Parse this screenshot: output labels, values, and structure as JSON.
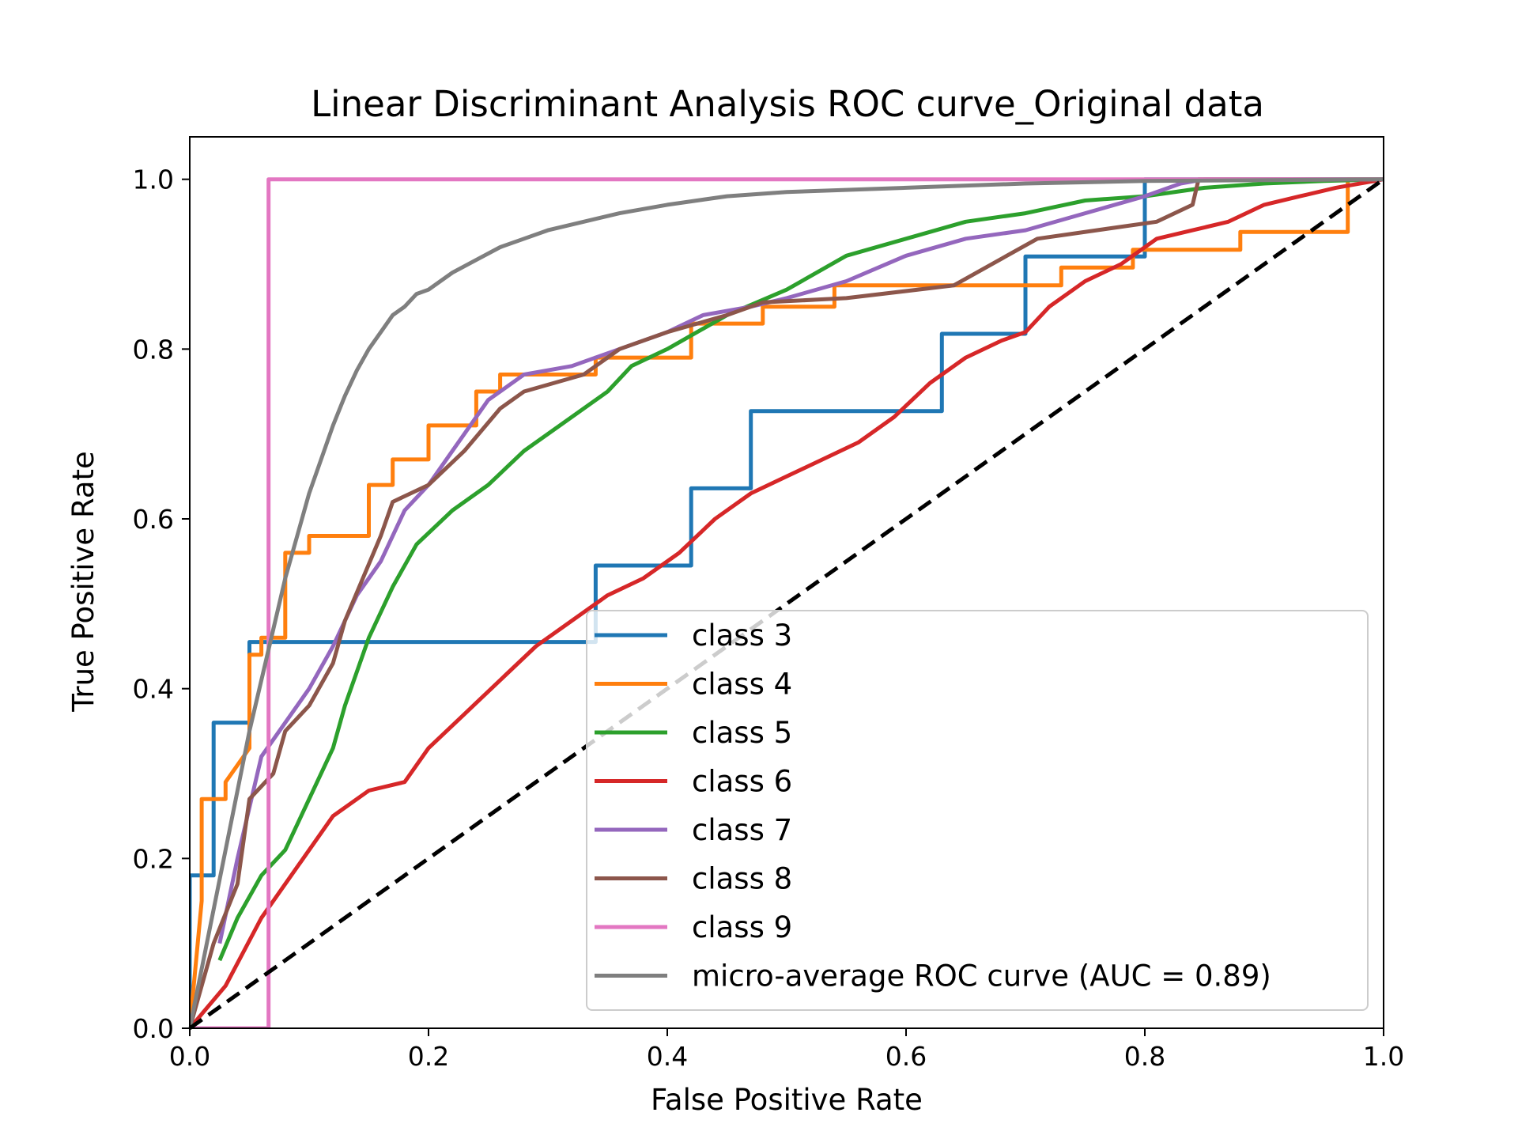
{
  "chart_data": {
    "type": "line",
    "title": "Linear Discriminant Analysis ROC curve_Original data",
    "xlabel": "False Positive Rate",
    "ylabel": "True Positive Rate",
    "xlim": [
      0.0,
      1.0
    ],
    "ylim": [
      0.0,
      1.05
    ],
    "xticks": [
      "0.0",
      "0.2",
      "0.4",
      "0.6",
      "0.8",
      "1.0"
    ],
    "yticks": [
      "0.0",
      "0.2",
      "0.4",
      "0.6",
      "0.8",
      "1.0"
    ],
    "grid": false,
    "legend_position": "lower right",
    "chance_line": {
      "x": [
        0,
        1
      ],
      "y": [
        0,
        1
      ],
      "color": "#000000",
      "style": "dashed"
    },
    "series": [
      {
        "name": "class 3",
        "color": "#1f77b4",
        "step": true,
        "x": [
          0,
          0,
          0.02,
          0.02,
          0.05,
          0.05,
          0.34,
          0.34,
          0.42,
          0.42,
          0.47,
          0.47,
          0.63,
          0.63,
          0.7,
          0.7,
          0.8,
          0.8,
          1.0
        ],
        "y": [
          0,
          0.18,
          0.18,
          0.36,
          0.36,
          0.455,
          0.455,
          0.545,
          0.545,
          0.636,
          0.636,
          0.727,
          0.727,
          0.818,
          0.818,
          0.909,
          0.909,
          1.0,
          1.0
        ]
      },
      {
        "name": "class 4",
        "color": "#ff7f0e",
        "step": true,
        "x": [
          0,
          0.01,
          0.01,
          0.03,
          0.03,
          0.05,
          0.05,
          0.06,
          0.06,
          0.08,
          0.08,
          0.1,
          0.1,
          0.15,
          0.15,
          0.17,
          0.17,
          0.2,
          0.2,
          0.24,
          0.24,
          0.26,
          0.26,
          0.34,
          0.34,
          0.42,
          0.42,
          0.48,
          0.48,
          0.54,
          0.54,
          0.61,
          0.61,
          0.73,
          0.73,
          0.79,
          0.79,
          0.88,
          0.88,
          0.97,
          0.97,
          1.0
        ],
        "y": [
          0,
          0.15,
          0.27,
          0.27,
          0.29,
          0.33,
          0.44,
          0.44,
          0.46,
          0.46,
          0.56,
          0.56,
          0.58,
          0.58,
          0.64,
          0.64,
          0.67,
          0.67,
          0.71,
          0.71,
          0.75,
          0.75,
          0.77,
          0.77,
          0.79,
          0.79,
          0.83,
          0.83,
          0.85,
          0.85,
          0.875,
          0.875,
          0.875,
          0.875,
          0.896,
          0.896,
          0.917,
          0.917,
          0.938,
          0.938,
          1.0,
          1.0
        ]
      },
      {
        "name": "class 5",
        "color": "#2ca02c",
        "step": false,
        "x": [
          0.025,
          0.04,
          0.06,
          0.08,
          0.1,
          0.12,
          0.13,
          0.15,
          0.17,
          0.19,
          0.22,
          0.25,
          0.28,
          0.32,
          0.35,
          0.37,
          0.4,
          0.45,
          0.5,
          0.55,
          0.6,
          0.65,
          0.7,
          0.75,
          0.8,
          0.85,
          0.9,
          0.95,
          1.0
        ],
        "y": [
          0.08,
          0.13,
          0.18,
          0.21,
          0.27,
          0.33,
          0.38,
          0.46,
          0.52,
          0.57,
          0.61,
          0.64,
          0.68,
          0.72,
          0.75,
          0.78,
          0.8,
          0.84,
          0.87,
          0.91,
          0.93,
          0.95,
          0.96,
          0.975,
          0.98,
          0.99,
          0.995,
          0.998,
          1.0
        ]
      },
      {
        "name": "class 6",
        "color": "#d62728",
        "step": false,
        "x": [
          0,
          0.03,
          0.06,
          0.09,
          0.12,
          0.15,
          0.18,
          0.2,
          0.23,
          0.26,
          0.29,
          0.32,
          0.35,
          0.38,
          0.41,
          0.44,
          0.47,
          0.5,
          0.53,
          0.56,
          0.59,
          0.62,
          0.65,
          0.68,
          0.7,
          0.72,
          0.75,
          0.78,
          0.81,
          0.84,
          0.87,
          0.9,
          0.93,
          0.96,
          1.0
        ],
        "y": [
          0,
          0.05,
          0.13,
          0.19,
          0.25,
          0.28,
          0.29,
          0.33,
          0.37,
          0.41,
          0.45,
          0.48,
          0.51,
          0.53,
          0.56,
          0.6,
          0.63,
          0.65,
          0.67,
          0.69,
          0.72,
          0.76,
          0.79,
          0.81,
          0.82,
          0.85,
          0.88,
          0.9,
          0.93,
          0.94,
          0.95,
          0.97,
          0.98,
          0.99,
          1.0
        ]
      },
      {
        "name": "class 7",
        "color": "#9467bd",
        "step": false,
        "x": [
          0.025,
          0.04,
          0.06,
          0.08,
          0.1,
          0.12,
          0.14,
          0.16,
          0.18,
          0.2,
          0.22,
          0.25,
          0.28,
          0.32,
          0.36,
          0.4,
          0.43,
          0.47,
          0.5,
          0.55,
          0.6,
          0.65,
          0.7,
          0.75,
          0.8,
          0.83,
          0.85,
          1.0
        ],
        "y": [
          0.1,
          0.2,
          0.32,
          0.36,
          0.4,
          0.45,
          0.51,
          0.55,
          0.61,
          0.64,
          0.68,
          0.74,
          0.77,
          0.78,
          0.8,
          0.82,
          0.84,
          0.85,
          0.86,
          0.88,
          0.91,
          0.93,
          0.94,
          0.96,
          0.98,
          0.995,
          1.0,
          1.0
        ]
      },
      {
        "name": "class 8",
        "color": "#8c564b",
        "step": true,
        "x": [
          0,
          0.02,
          0.02,
          0.04,
          0.04,
          0.05,
          0.05,
          0.07,
          0.07,
          0.08,
          0.08,
          0.1,
          0.1,
          0.12,
          0.12,
          0.13,
          0.13,
          0.16,
          0.16,
          0.17,
          0.17,
          0.2,
          0.2,
          0.23,
          0.23,
          0.26,
          0.26,
          0.28,
          0.28,
          0.33,
          0.33,
          0.36,
          0.36,
          0.4,
          0.4,
          0.45,
          0.45,
          0.48,
          0.48,
          0.55,
          0.55,
          0.64,
          0.64,
          0.71,
          0.71,
          0.81,
          0.81,
          0.84,
          0.84,
          0.845,
          0.845,
          1.0
        ],
        "y": [
          0,
          0.1,
          0.1,
          0.17,
          0.17,
          0.27,
          0.27,
          0.3,
          0.3,
          0.35,
          0.35,
          0.38,
          0.38,
          0.43,
          0.43,
          0.48,
          0.48,
          0.58,
          0.58,
          0.62,
          0.62,
          0.64,
          0.64,
          0.68,
          0.68,
          0.73,
          0.73,
          0.75,
          0.75,
          0.77,
          0.77,
          0.8,
          0.8,
          0.82,
          0.82,
          0.84,
          0.84,
          0.855,
          0.855,
          0.86,
          0.86,
          0.875,
          0.875,
          0.93,
          0.93,
          0.95,
          0.95,
          0.97,
          0.97,
          1.0,
          1.0,
          1.0
        ]
      },
      {
        "name": "class 9",
        "color": "#e377c2",
        "step": true,
        "x": [
          0,
          0.066,
          0.066,
          1.0
        ],
        "y": [
          0,
          0,
          1.0,
          1.0
        ]
      },
      {
        "name": "micro-average ROC curve (AUC = 0.89)",
        "color": "#7f7f7f",
        "step": false,
        "x": [
          0,
          0.01,
          0.02,
          0.03,
          0.04,
          0.05,
          0.06,
          0.07,
          0.08,
          0.09,
          0.1,
          0.11,
          0.12,
          0.13,
          0.14,
          0.15,
          0.16,
          0.17,
          0.18,
          0.19,
          0.2,
          0.22,
          0.24,
          0.26,
          0.28,
          0.3,
          0.33,
          0.36,
          0.4,
          0.45,
          0.5,
          0.6,
          0.7,
          0.8,
          0.9,
          1.0
        ],
        "y": [
          0,
          0.07,
          0.14,
          0.21,
          0.28,
          0.35,
          0.41,
          0.47,
          0.53,
          0.58,
          0.63,
          0.67,
          0.71,
          0.745,
          0.775,
          0.8,
          0.82,
          0.84,
          0.85,
          0.865,
          0.87,
          0.89,
          0.905,
          0.92,
          0.93,
          0.94,
          0.95,
          0.96,
          0.97,
          0.98,
          0.985,
          0.99,
          0.995,
          0.998,
          0.999,
          1.0
        ]
      }
    ]
  }
}
